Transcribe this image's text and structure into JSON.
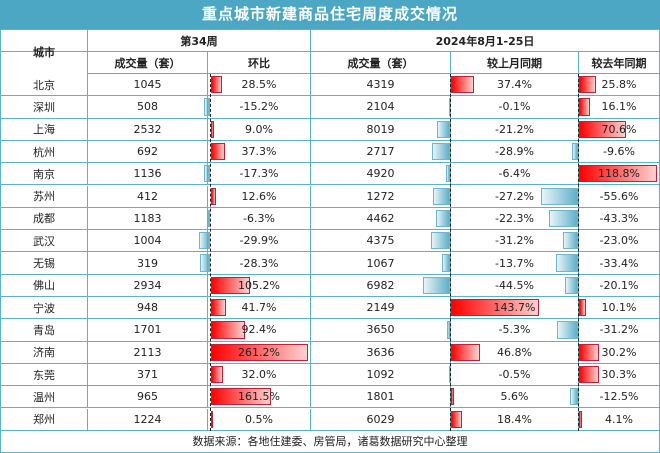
{
  "title": "重点城市新建商品住宅周度成交情况",
  "chart_data": {
    "type": "table",
    "headers": {
      "city": "城市",
      "week_group": "第34周",
      "period_group": "2024年8月1-25日",
      "week_volume": "成交量（套）",
      "week_wow": "环比",
      "period_volume": "成交量（套）",
      "period_mom": "较上月同期",
      "period_yoy": "较去年同期"
    },
    "rows": [
      {
        "city": "北京",
        "week_volume": "1045",
        "week_wow": 28.5,
        "period_volume": "4319",
        "period_mom": 37.4,
        "period_yoy": 25.8
      },
      {
        "city": "深圳",
        "week_volume": "508",
        "week_wow": -15.2,
        "period_volume": "2104",
        "period_mom": -0.1,
        "period_yoy": 16.1
      },
      {
        "city": "上海",
        "week_volume": "2532",
        "week_wow": 9.0,
        "period_volume": "8019",
        "period_mom": -21.2,
        "period_yoy": 70.6
      },
      {
        "city": "杭州",
        "week_volume": "692",
        "week_wow": 37.3,
        "period_volume": "2717",
        "period_mom": -28.9,
        "period_yoy": -9.6
      },
      {
        "city": "南京",
        "week_volume": "1136",
        "week_wow": -17.3,
        "period_volume": "4920",
        "period_mom": -6.4,
        "period_yoy": 118.8
      },
      {
        "city": "苏州",
        "week_volume": "412",
        "week_wow": 12.6,
        "period_volume": "1272",
        "period_mom": -27.2,
        "period_yoy": -55.6
      },
      {
        "city": "成都",
        "week_volume": "1183",
        "week_wow": -6.3,
        "period_volume": "4462",
        "period_mom": -22.3,
        "period_yoy": -43.3
      },
      {
        "city": "武汉",
        "week_volume": "1004",
        "week_wow": -29.9,
        "period_volume": "4375",
        "period_mom": -31.2,
        "period_yoy": -23.0
      },
      {
        "city": "无锡",
        "week_volume": "319",
        "week_wow": -28.3,
        "period_volume": "1067",
        "period_mom": -13.7,
        "period_yoy": -33.4
      },
      {
        "city": "佛山",
        "week_volume": "2934",
        "week_wow": 105.2,
        "period_volume": "6982",
        "period_mom": -44.5,
        "period_yoy": -20.1
      },
      {
        "city": "宁波",
        "week_volume": "948",
        "week_wow": 41.7,
        "period_volume": "2149",
        "period_mom": 143.7,
        "period_yoy": 10.1
      },
      {
        "city": "青岛",
        "week_volume": "1701",
        "week_wow": 92.4,
        "period_volume": "3650",
        "period_mom": -5.3,
        "period_yoy": -31.2
      },
      {
        "city": "济南",
        "week_volume": "2113",
        "week_wow": 261.2,
        "period_volume": "3636",
        "period_mom": 46.8,
        "period_yoy": 30.2
      },
      {
        "city": "东莞",
        "week_volume": "371",
        "week_wow": 32.0,
        "period_volume": "1092",
        "period_mom": -0.5,
        "period_yoy": 30.3
      },
      {
        "city": "温州",
        "week_volume": "965",
        "week_wow": 161.5,
        "period_volume": "1801",
        "period_mom": 5.6,
        "period_yoy": -12.5
      },
      {
        "city": "郑州",
        "week_volume": "1224",
        "week_wow": 0.5,
        "period_volume": "6029",
        "period_mom": 18.4,
        "period_yoy": 4.1
      }
    ],
    "colors": {
      "positive": "#ff0000",
      "negative": "#5fb0c9",
      "header": "#4ba7c3"
    }
  },
  "footer": "数据来源：各地住建委、房管局，诸葛数据研究中心整理"
}
